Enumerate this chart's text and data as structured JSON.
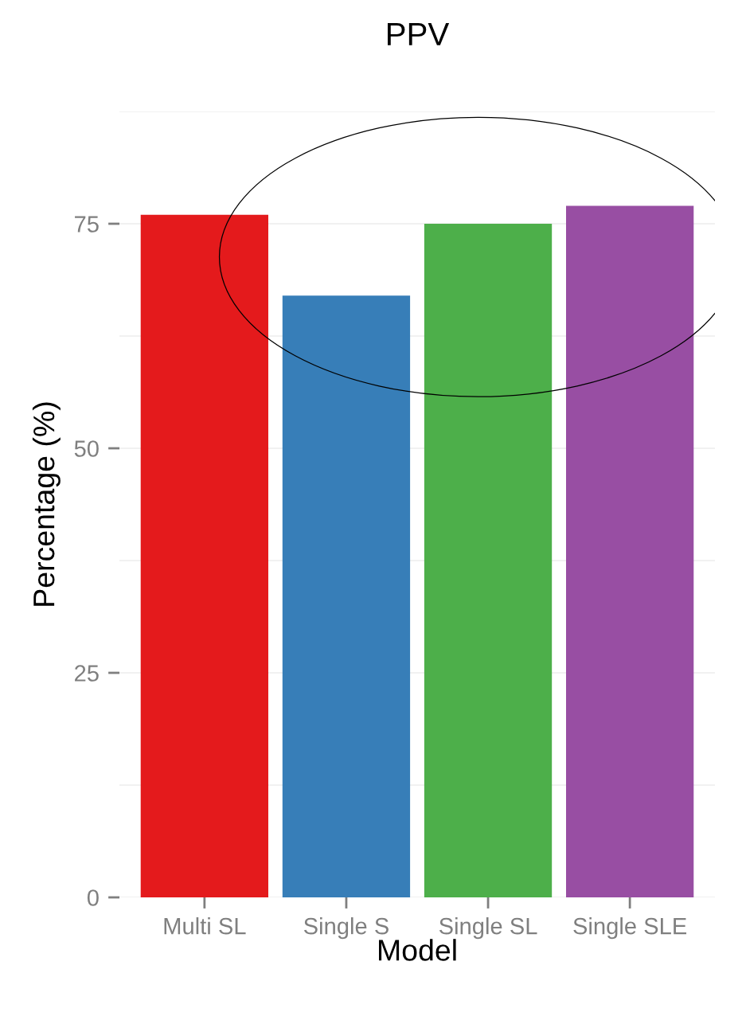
{
  "chart_data": {
    "type": "bar",
    "title": "PPV",
    "xlabel": "Model",
    "ylabel": "Percentage (%)",
    "categories": [
      "Multi SL",
      "Single S",
      "Single SL",
      "Single SLE"
    ],
    "values": [
      76,
      67,
      75,
      77
    ],
    "colors": [
      "#e41a1c",
      "#377eb8",
      "#4daf4a",
      "#984ea3"
    ],
    "ylim": [
      0,
      87.5
    ],
    "yticks": [
      0,
      25,
      50,
      75
    ],
    "grid": "y",
    "legend": false
  }
}
